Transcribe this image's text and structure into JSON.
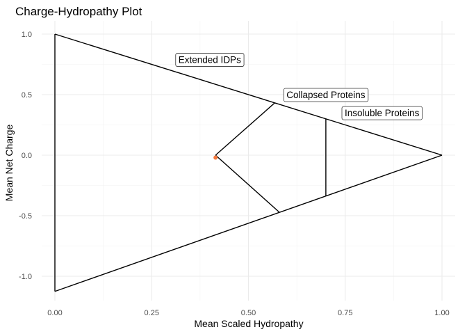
{
  "chart_data": {
    "type": "scatter",
    "title": "Charge-Hydropathy Plot",
    "xlabel": "Mean Scaled Hydropathy",
    "ylabel": "Mean Net Charge",
    "xlim": [
      0.0,
      1.0
    ],
    "ylim": [
      -1.13,
      1.0
    ],
    "x_ticks": [
      "0.00",
      "0.25",
      "0.50",
      "0.75",
      "1.00"
    ],
    "y_ticks": [
      "1.0",
      "0.5",
      "0.0",
      "-0.5",
      "-1.0"
    ],
    "grid": true,
    "point_color": "#f4793e",
    "boundary_color": "#000000",
    "points": [
      {
        "x": 0.415,
        "y": -0.02
      }
    ],
    "boundary_lines": [
      {
        "name": "upper-boundary",
        "x": [
          0.0,
          1.0
        ],
        "y": [
          1.0,
          0.0
        ]
      },
      {
        "name": "lower-boundary",
        "x": [
          0.0,
          1.0
        ],
        "y": [
          -1.125,
          0.0
        ]
      },
      {
        "name": "left-boundary",
        "x": [
          0.0,
          0.0
        ],
        "y": [
          -1.125,
          1.0
        ]
      },
      {
        "name": "idp-upper-divider",
        "x": [
          0.415,
          0.568
        ],
        "y": [
          0.0,
          0.432
        ]
      },
      {
        "name": "idp-lower-divider",
        "x": [
          0.415,
          0.58
        ],
        "y": [
          0.0,
          -0.472
        ]
      },
      {
        "name": "insoluble-divider",
        "x": [
          0.7,
          0.7
        ],
        "y": [
          0.3,
          -0.338
        ]
      }
    ],
    "annotations": [
      {
        "text": "Extended IDPs",
        "x": 0.4,
        "y": 0.79
      },
      {
        "text": "Collapsed Proteins",
        "x": 0.7,
        "y": 0.5
      },
      {
        "text": "Insoluble Proteins",
        "x": 0.845,
        "y": 0.35
      }
    ]
  }
}
